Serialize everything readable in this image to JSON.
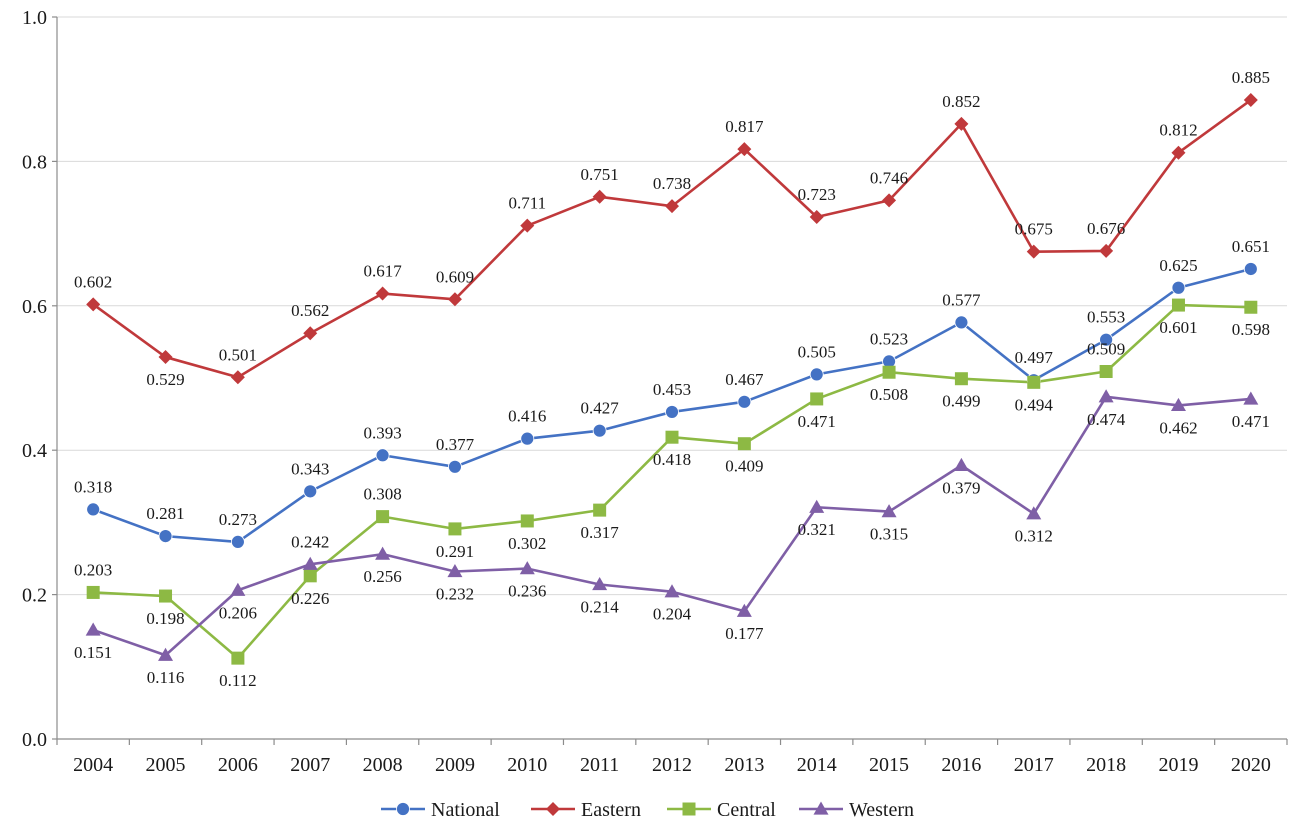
{
  "chart_data": {
    "type": "line",
    "title": "",
    "xlabel": "",
    "ylabel": "",
    "categories": [
      "2004",
      "2005",
      "2006",
      "2007",
      "2008",
      "2009",
      "2010",
      "2011",
      "2012",
      "2013",
      "2014",
      "2015",
      "2016",
      "2017",
      "2018",
      "2019",
      "2020"
    ],
    "ylim": [
      0,
      1.0
    ],
    "yticks": [
      "0.0",
      "0.2",
      "0.4",
      "0.6",
      "0.8",
      "1.0"
    ],
    "grid": true,
    "legend_position": "bottom",
    "series": [
      {
        "name": "National",
        "color": "#4472C4",
        "marker": "circle",
        "values": [
          0.318,
          0.281,
          0.273,
          0.343,
          0.393,
          0.377,
          0.416,
          0.427,
          0.453,
          0.467,
          0.505,
          0.523,
          0.577,
          0.497,
          0.553,
          0.625,
          0.651
        ],
        "labels": [
          "0.318",
          "0.281",
          "0.273",
          "0.343",
          "0.393",
          "0.377",
          "0.416",
          "0.427",
          "0.453",
          "0.467",
          "0.505",
          "0.523",
          "0.577",
          "0.497",
          "0.553",
          "0.625",
          "0.651"
        ]
      },
      {
        "name": "Eastern",
        "color": "#C0393B",
        "marker": "diamond",
        "values": [
          0.602,
          0.529,
          0.501,
          0.562,
          0.617,
          0.609,
          0.711,
          0.751,
          0.738,
          0.817,
          0.723,
          0.746,
          0.852,
          0.675,
          0.676,
          0.812,
          0.885
        ],
        "labels": [
          "0.602",
          "0.529",
          "0.501",
          "0.562",
          "0.617",
          "0.609",
          "0.711",
          "0.751",
          "0.738",
          "0.817",
          "0.723",
          "0.746",
          "0.852",
          "0.675",
          "0.676",
          "0.812",
          "0.885"
        ]
      },
      {
        "name": "Central",
        "color": "#8DB944",
        "marker": "square",
        "values": [
          0.203,
          0.198,
          0.112,
          0.226,
          0.308,
          0.291,
          0.302,
          0.317,
          0.418,
          0.409,
          0.471,
          0.508,
          0.499,
          0.494,
          0.509,
          0.601,
          0.598
        ],
        "labels": [
          "0.203",
          "0.198",
          "0.112",
          "0.226",
          "0.308",
          "0.291",
          "0.302",
          "0.317",
          "0.418",
          "0.409",
          "0.471",
          "0.508",
          "0.499",
          "0.494",
          "0.509",
          "0.601",
          "0.598"
        ]
      },
      {
        "name": "Western",
        "color": "#7F5FA6",
        "marker": "triangle",
        "values": [
          0.151,
          0.116,
          0.206,
          0.242,
          0.256,
          0.232,
          0.236,
          0.214,
          0.204,
          0.177,
          0.321,
          0.315,
          0.379,
          0.312,
          0.474,
          0.462,
          0.471
        ],
        "labels": [
          "0.151",
          "0.116",
          "0.206",
          "0.242",
          "0.256",
          "0.232",
          "0.236",
          "0.214",
          "0.204",
          "0.177",
          "0.321",
          "0.315",
          "0.379",
          "0.312",
          "0.474",
          "0.462",
          "0.471"
        ]
      }
    ]
  }
}
